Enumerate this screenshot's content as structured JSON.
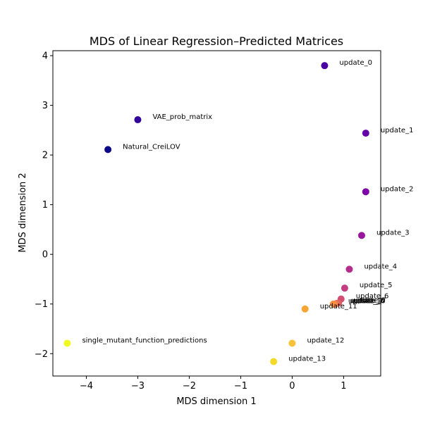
{
  "chart_data": {
    "type": "scatter",
    "title": "MDS of Linear Regression–Predicted Matrices",
    "xlabel": "MDS dimension 1",
    "ylabel": "MDS dimension 2",
    "xlim": [
      -4.65,
      1.72
    ],
    "ylim": [
      -2.45,
      4.1
    ],
    "xticks": [
      -4,
      -3,
      -2,
      -1,
      0,
      1
    ],
    "yticks": [
      -2,
      -1,
      0,
      1,
      2,
      3,
      4
    ],
    "xtick_labels": [
      "−4",
      "−3",
      "−2",
      "−1",
      "0",
      "1"
    ],
    "ytick_labels": [
      "−2",
      "−1",
      "0",
      "1",
      "2",
      "3",
      "4"
    ],
    "grid": false,
    "legend": "none",
    "colormap": "plasma",
    "points": [
      {
        "label": "update_0",
        "x": 0.63,
        "y": 3.8,
        "color": "#4a03a2"
      },
      {
        "label": "VAE_prob_matrix",
        "x": -3.0,
        "y": 2.71,
        "color": "#31049b"
      },
      {
        "label": "Natural_CreiLOV",
        "x": -3.58,
        "y": 2.11,
        "color": "#0d0887"
      },
      {
        "label": "update_1",
        "x": 1.43,
        "y": 2.44,
        "color": "#6300a7"
      },
      {
        "label": "update_2",
        "x": 1.43,
        "y": 1.26,
        "color": "#7e03a8"
      },
      {
        "label": "update_3",
        "x": 1.35,
        "y": 0.38,
        "color": "#9a169f"
      },
      {
        "label": "update_4",
        "x": 1.11,
        "y": -0.3,
        "color": "#b42e8d"
      },
      {
        "label": "update_5",
        "x": 1.02,
        "y": -0.68,
        "color": "#c33d80"
      },
      {
        "label": "update_6",
        "x": 0.95,
        "y": -0.9,
        "color": "#d24f71"
      },
      {
        "label": "update_7",
        "x": 0.9,
        "y": -0.98,
        "color": "#dd5e66"
      },
      {
        "label": "update_8",
        "x": 0.86,
        "y": -0.99,
        "color": "#e76e5b"
      },
      {
        "label": "update_9",
        "x": 0.83,
        "y": -1.0,
        "color": "#ef7f4f"
      },
      {
        "label": "update_10",
        "x": 0.8,
        "y": -1.0,
        "color": "#f68f44"
      },
      {
        "label": "update_11",
        "x": 0.25,
        "y": -1.1,
        "color": "#f8a535"
      },
      {
        "label": "update_12",
        "x": 0.0,
        "y": -1.79,
        "color": "#f7c13a"
      },
      {
        "label": "update_13",
        "x": -0.36,
        "y": -2.16,
        "color": "#f2db26"
      },
      {
        "label": "single_mutant_function_predictions",
        "x": -4.37,
        "y": -1.79,
        "color": "#f0f921"
      }
    ]
  }
}
